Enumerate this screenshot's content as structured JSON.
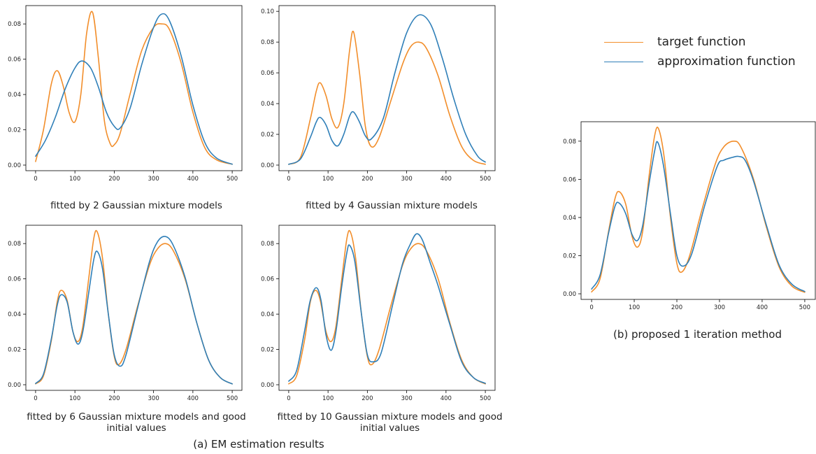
{
  "legend": {
    "entries": [
      {
        "label": "target function",
        "color": "#f28e2b"
      },
      {
        "label": "approximation function",
        "color": "#2f7fb8"
      }
    ]
  },
  "group_captions": {
    "a": "(a) EM estimation results",
    "b": "(b) proposed 1 iteration method"
  },
  "chart_data": [
    {
      "type": "line",
      "id": "em2",
      "title": "",
      "caption": "fitted by 2 Gaussian mixture models",
      "xlim": [
        0,
        500
      ],
      "ylim": [
        0,
        0.088
      ],
      "xticks": [
        0,
        100,
        200,
        300,
        400,
        500
      ],
      "yticks": [
        0.0,
        0.02,
        0.04,
        0.06,
        0.08
      ],
      "ytick_labels": [
        "0.00",
        "0.02",
        "0.04",
        "0.06",
        "0.08"
      ],
      "series": [
        {
          "name": "target function",
          "color": "#f28e2b",
          "x": [
            0,
            20,
            40,
            55,
            70,
            85,
            100,
            115,
            130,
            145,
            160,
            175,
            190,
            200,
            215,
            240,
            270,
            300,
            320,
            340,
            370,
            400,
            430,
            460,
            500
          ],
          "y": [
            0.002,
            0.02,
            0.046,
            0.0535,
            0.045,
            0.03,
            0.0245,
            0.04,
            0.075,
            0.0865,
            0.06,
            0.025,
            0.012,
            0.0115,
            0.018,
            0.04,
            0.065,
            0.078,
            0.08,
            0.077,
            0.058,
            0.03,
            0.01,
            0.003,
            0.0005
          ]
        },
        {
          "name": "approximation function",
          "color": "#2f7fb8",
          "x": [
            0,
            25,
            50,
            75,
            100,
            118,
            140,
            160,
            180,
            200,
            215,
            240,
            270,
            300,
            320,
            340,
            370,
            400,
            430,
            460,
            500
          ],
          "y": [
            0.005,
            0.014,
            0.027,
            0.043,
            0.055,
            0.059,
            0.055,
            0.044,
            0.03,
            0.022,
            0.021,
            0.032,
            0.057,
            0.078,
            0.0855,
            0.082,
            0.062,
            0.034,
            0.013,
            0.004,
            0.0005
          ]
        }
      ]
    },
    {
      "type": "line",
      "id": "em4",
      "title": "",
      "caption": "fitted by 4 Gaussian mixture models",
      "xlim": [
        0,
        500
      ],
      "ylim": [
        0,
        0.101
      ],
      "xticks": [
        0,
        100,
        200,
        300,
        400,
        500
      ],
      "yticks": [
        0.0,
        0.02,
        0.04,
        0.06,
        0.08,
        0.1
      ],
      "ytick_labels": [
        "0.00",
        "0.02",
        "0.04",
        "0.06",
        "0.08",
        "0.10"
      ],
      "series": [
        {
          "name": "target function",
          "color": "#f28e2b",
          "x": [
            0,
            30,
            55,
            70,
            80,
            95,
            110,
            125,
            140,
            155,
            165,
            180,
            195,
            210,
            230,
            260,
            290,
            310,
            330,
            350,
            380,
            410,
            440,
            470,
            500
          ],
          "y": [
            0.0005,
            0.005,
            0.03,
            0.048,
            0.0535,
            0.045,
            0.03,
            0.0245,
            0.04,
            0.075,
            0.0865,
            0.06,
            0.025,
            0.012,
            0.018,
            0.042,
            0.066,
            0.077,
            0.08,
            0.076,
            0.058,
            0.032,
            0.012,
            0.003,
            0.0005
          ]
        },
        {
          "name": "approximation function",
          "color": "#2f7fb8",
          "x": [
            0,
            30,
            55,
            70,
            80,
            95,
            110,
            125,
            140,
            155,
            165,
            180,
            195,
            210,
            240,
            270,
            300,
            330,
            360,
            390,
            420,
            450,
            480,
            500
          ],
          "y": [
            0.0005,
            0.004,
            0.018,
            0.028,
            0.031,
            0.026,
            0.016,
            0.0125,
            0.02,
            0.032,
            0.0345,
            0.028,
            0.019,
            0.017,
            0.03,
            0.06,
            0.086,
            0.0975,
            0.092,
            0.07,
            0.043,
            0.02,
            0.006,
            0.002
          ]
        }
      ]
    },
    {
      "type": "line",
      "id": "em6",
      "title": "",
      "caption": "fitted by 6 Gaussian mixture models and good initial values",
      "xlim": [
        0,
        500
      ],
      "ylim": [
        0,
        0.088
      ],
      "xticks": [
        0,
        100,
        200,
        300,
        400,
        500
      ],
      "yticks": [
        0.0,
        0.02,
        0.04,
        0.06,
        0.08
      ],
      "ytick_labels": [
        "0.00",
        "0.02",
        "0.04",
        "0.06",
        "0.08"
      ],
      "series": [
        {
          "name": "target function",
          "color": "#f28e2b",
          "x": [
            0,
            20,
            40,
            55,
            65,
            80,
            95,
            108,
            120,
            135,
            148,
            157,
            170,
            185,
            200,
            212,
            230,
            260,
            290,
            310,
            330,
            350,
            380,
            410,
            440,
            470,
            500
          ],
          "y": [
            0.0005,
            0.005,
            0.025,
            0.047,
            0.0535,
            0.048,
            0.03,
            0.0245,
            0.033,
            0.06,
            0.083,
            0.0865,
            0.072,
            0.04,
            0.016,
            0.0115,
            0.02,
            0.045,
            0.068,
            0.077,
            0.08,
            0.076,
            0.06,
            0.035,
            0.014,
            0.004,
            0.0005
          ]
        },
        {
          "name": "approximation function",
          "color": "#2f7fb8",
          "x": [
            0,
            20,
            40,
            55,
            65,
            80,
            95,
            108,
            120,
            135,
            148,
            157,
            170,
            185,
            200,
            215,
            230,
            260,
            290,
            310,
            330,
            350,
            380,
            410,
            440,
            470,
            500
          ],
          "y": [
            0.0007,
            0.006,
            0.026,
            0.045,
            0.051,
            0.047,
            0.03,
            0.023,
            0.03,
            0.052,
            0.071,
            0.0755,
            0.066,
            0.04,
            0.017,
            0.0105,
            0.017,
            0.044,
            0.07,
            0.081,
            0.084,
            0.079,
            0.061,
            0.035,
            0.014,
            0.004,
            0.0005
          ]
        }
      ]
    },
    {
      "type": "line",
      "id": "em10",
      "title": "",
      "caption": "fitted by 10 Gaussian mixture models and good initial values",
      "xlim": [
        0,
        500
      ],
      "ylim": [
        0,
        0.088
      ],
      "xticks": [
        0,
        100,
        200,
        300,
        400,
        500
      ],
      "yticks": [
        0.0,
        0.02,
        0.04,
        0.06,
        0.08
      ],
      "ytick_labels": [
        "0.00",
        "0.02",
        "0.04",
        "0.06",
        "0.08"
      ],
      "series": [
        {
          "name": "target function",
          "color": "#f28e2b",
          "x": [
            0,
            20,
            40,
            55,
            68,
            80,
            95,
            108,
            120,
            135,
            148,
            157,
            170,
            185,
            200,
            212,
            230,
            260,
            290,
            310,
            330,
            350,
            380,
            410,
            440,
            470,
            500
          ],
          "y": [
            0.0005,
            0.005,
            0.025,
            0.047,
            0.0535,
            0.048,
            0.03,
            0.0245,
            0.033,
            0.06,
            0.083,
            0.0865,
            0.072,
            0.04,
            0.016,
            0.0115,
            0.02,
            0.045,
            0.068,
            0.077,
            0.08,
            0.076,
            0.06,
            0.035,
            0.014,
            0.004,
            0.0005
          ]
        },
        {
          "name": "approximation function",
          "color": "#2f7fb8",
          "x": [
            0,
            20,
            40,
            55,
            70,
            82,
            95,
            108,
            120,
            135,
            148,
            155,
            168,
            185,
            200,
            215,
            235,
            265,
            290,
            310,
            325,
            340,
            360,
            380,
            410,
            440,
            470,
            500
          ],
          "y": [
            0.002,
            0.008,
            0.03,
            0.048,
            0.055,
            0.048,
            0.028,
            0.0195,
            0.03,
            0.056,
            0.075,
            0.079,
            0.07,
            0.04,
            0.017,
            0.013,
            0.018,
            0.046,
            0.069,
            0.08,
            0.0855,
            0.082,
            0.069,
            0.056,
            0.034,
            0.013,
            0.004,
            0.0008
          ]
        }
      ]
    },
    {
      "type": "line",
      "id": "proposed",
      "title": "",
      "caption": "",
      "xlim": [
        0,
        500
      ],
      "ylim": [
        0,
        0.088
      ],
      "xticks": [
        0,
        100,
        200,
        300,
        400,
        500
      ],
      "yticks": [
        0.0,
        0.02,
        0.04,
        0.06,
        0.08
      ],
      "ytick_labels": [
        "0.00",
        "0.02",
        "0.04",
        "0.06",
        "0.08"
      ],
      "series": [
        {
          "name": "target function",
          "color": "#f28e2b",
          "x": [
            0,
            20,
            40,
            55,
            65,
            80,
            95,
            108,
            120,
            135,
            148,
            157,
            170,
            185,
            200,
            212,
            230,
            260,
            290,
            310,
            333,
            350,
            380,
            410,
            440,
            470,
            500
          ],
          "y": [
            0.001,
            0.008,
            0.033,
            0.05,
            0.0535,
            0.047,
            0.03,
            0.0245,
            0.033,
            0.062,
            0.083,
            0.0865,
            0.072,
            0.04,
            0.016,
            0.0115,
            0.02,
            0.045,
            0.068,
            0.077,
            0.08,
            0.077,
            0.06,
            0.035,
            0.014,
            0.004,
            0.0008
          ]
        },
        {
          "name": "approximation function",
          "color": "#2f7fb8",
          "x": [
            0,
            20,
            40,
            55,
            65,
            80,
            95,
            108,
            120,
            135,
            148,
            155,
            168,
            185,
            200,
            215,
            235,
            265,
            295,
            310,
            330,
            345,
            360,
            380,
            410,
            440,
            470,
            500
          ],
          "y": [
            0.0025,
            0.01,
            0.032,
            0.046,
            0.0475,
            0.042,
            0.031,
            0.028,
            0.036,
            0.058,
            0.075,
            0.0795,
            0.068,
            0.042,
            0.02,
            0.0145,
            0.021,
            0.046,
            0.067,
            0.07,
            0.0715,
            0.072,
            0.07,
            0.059,
            0.036,
            0.015,
            0.005,
            0.0012
          ]
        }
      ]
    }
  ]
}
